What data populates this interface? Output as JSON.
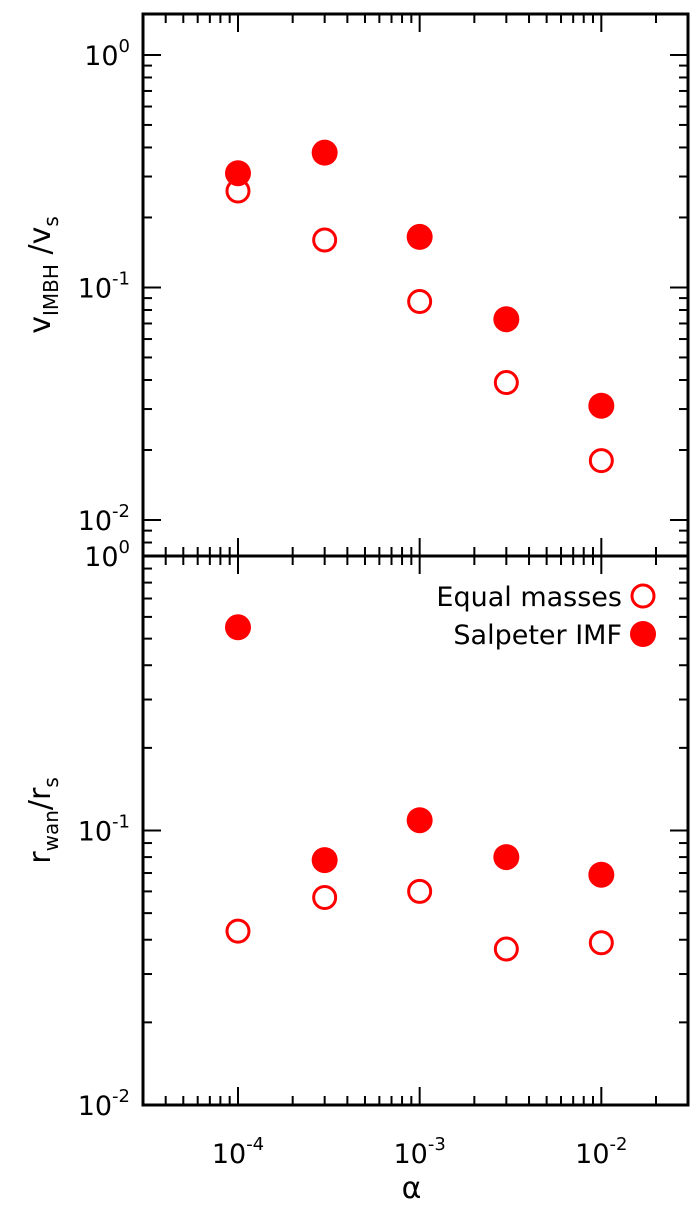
{
  "colors": {
    "marker": "#ff0000",
    "axis": "#000000",
    "background": "#ffffff"
  },
  "chart_data": [
    {
      "type": "scatter",
      "panel": "top",
      "ylabel": {
        "main": "v",
        "sub": "IMBH",
        "rest": " /v",
        "sub2": "s"
      },
      "x_scale": "log",
      "y_scale": "log",
      "xlim": [
        3e-05,
        0.03
      ],
      "ylim": [
        0.007,
        1.5
      ],
      "y_ticks": [
        {
          "value": 1,
          "base": "10",
          "exp": "0"
        },
        {
          "value": 0.1,
          "base": "10",
          "exp": "-1"
        },
        {
          "value": 0.01,
          "base": "10",
          "exp": "-2"
        }
      ],
      "grid": false,
      "series": [
        {
          "style": "open",
          "x": [
            0.0001,
            0.0003,
            0.001,
            0.003,
            0.01
          ],
          "y": [
            0.26,
            0.16,
            0.087,
            0.039,
            0.018
          ]
        },
        {
          "style": "filled",
          "x": [
            0.0001,
            0.0003,
            0.001,
            0.003,
            0.01
          ],
          "y": [
            0.31,
            0.38,
            0.165,
            0.073,
            0.031
          ]
        }
      ]
    },
    {
      "type": "scatter",
      "panel": "bottom",
      "xlabel": "α",
      "ylabel": {
        "main": "r",
        "sub": "wan",
        "rest": "/r",
        "sub2": "s"
      },
      "x_scale": "log",
      "y_scale": "log",
      "xlim": [
        3e-05,
        0.03
      ],
      "ylim": [
        0.01,
        1.0
      ],
      "x_ticks": [
        {
          "value": 0.0001,
          "base": "10",
          "exp": "-4"
        },
        {
          "value": 0.001,
          "base": "10",
          "exp": "-3"
        },
        {
          "value": 0.01,
          "base": "10",
          "exp": "-2"
        }
      ],
      "y_ticks": [
        {
          "value": 1,
          "base": "10",
          "exp": "0"
        },
        {
          "value": 0.1,
          "base": "10",
          "exp": "-1"
        },
        {
          "value": 0.01,
          "base": "10",
          "exp": "-2"
        }
      ],
      "grid": false,
      "legend": {
        "placement": "top-right"
      },
      "series": [
        {
          "name": "Equal masses",
          "style": "open",
          "x": [
            0.0001,
            0.0003,
            0.001,
            0.003,
            0.01
          ],
          "y": [
            0.043,
            0.057,
            0.06,
            0.037,
            0.039
          ]
        },
        {
          "name": "Salpeter IMF",
          "style": "filled",
          "x": [
            0.0001,
            0.0003,
            0.001,
            0.003,
            0.01
          ],
          "y": [
            0.55,
            0.078,
            0.109,
            0.08,
            0.069
          ]
        }
      ]
    }
  ]
}
